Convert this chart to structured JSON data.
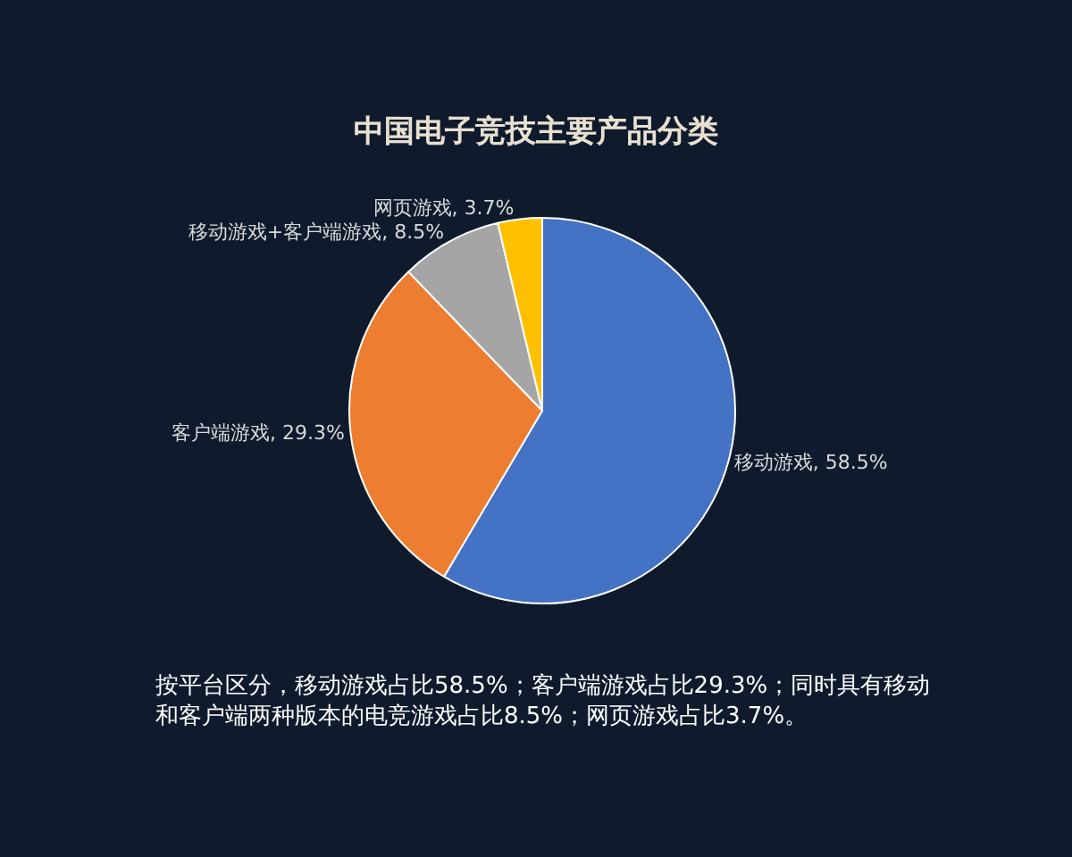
{
  "chart_data": {
    "type": "pie",
    "title": "中国电子竞技主要产品分类",
    "categories": [
      "移动游戏",
      "客户端游戏",
      "移动游戏+客户端游戏",
      "网页游戏"
    ],
    "values": [
      58.5,
      29.3,
      8.5,
      3.7
    ],
    "value_labels": [
      "58.5%",
      "29.3%",
      "8.5%",
      "3.7%"
    ],
    "colors": [
      "#4472c4",
      "#ed7d31",
      "#a5a5a5",
      "#ffc000"
    ],
    "legend": false,
    "annotations": [
      "按平台区分，移动游戏占比58.5%；客户端游戏占比29.3%；同时具有移动和客户端两种版本的电竞游戏占比8.5%；网页游戏占比3.7%。"
    ]
  }
}
